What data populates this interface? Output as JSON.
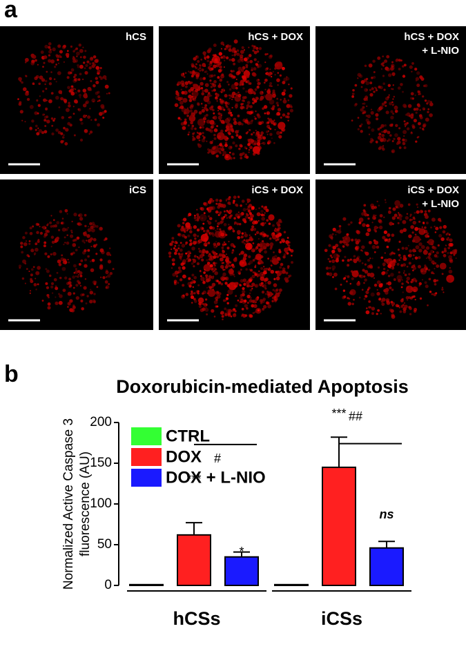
{
  "figure_labels": [
    "a",
    "b"
  ],
  "panels": [
    {
      "lines": [
        "hCS"
      ]
    },
    {
      "lines": [
        "hCS + DOX"
      ]
    },
    {
      "lines": [
        "hCS + DOX",
        "+ L-NIO"
      ]
    },
    {
      "lines": [
        "iCS"
      ]
    },
    {
      "lines": [
        "iCS + DOX"
      ]
    },
    {
      "lines": [
        "iCS + DOX",
        "+ L-NIO"
      ]
    }
  ],
  "chart_data": {
    "type": "bar",
    "title": "Doxorubicin-mediated Apoptosis",
    "ylabel": [
      "Normalized Active Caspase 3",
      "fluorescence (AU)"
    ],
    "categories": [
      "hCSs",
      "iCSs"
    ],
    "series": [
      {
        "name": "CTRL",
        "color": "#33ff33",
        "values": [
          1,
          1
        ],
        "errors": [
          0,
          0
        ]
      },
      {
        "name": "DOX",
        "color": "#ff2020",
        "values": [
          62,
          145
        ],
        "errors": [
          15,
          37
        ]
      },
      {
        "name": "DOX + L-NIO",
        "color": "#1a1aff",
        "values": [
          35,
          46
        ],
        "errors": [
          6,
          8
        ]
      }
    ],
    "ylim": [
      0,
      200
    ],
    "yticks": [
      0,
      50,
      100,
      150,
      200
    ],
    "annotations": [
      "***",
      "*",
      "#",
      "***",
      "ns",
      "##"
    ]
  }
}
